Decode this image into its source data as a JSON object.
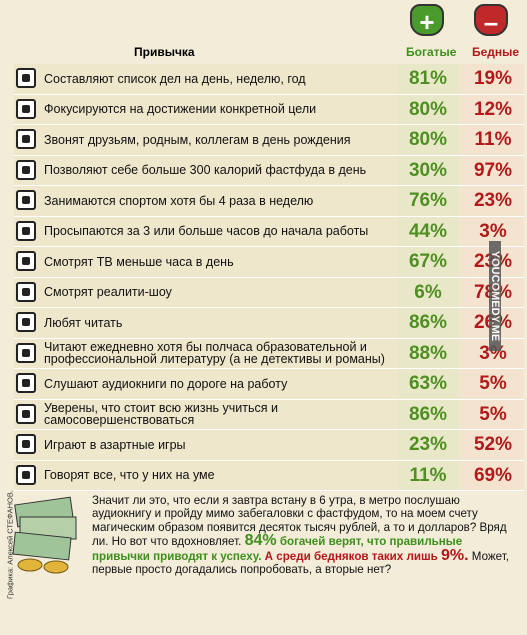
{
  "header": {
    "habit": "Привычка",
    "rich": "Богатые",
    "poor": "Бедные"
  },
  "table": {
    "rows": [
      [
        "Составляют список дел на день, неделю, год",
        "81%",
        "19%"
      ],
      [
        "Фокусируются на достижении конкретной цели",
        "80%",
        "12%"
      ],
      [
        "Звонят друзьям, родным, коллегам в день рождения",
        "80%",
        "11%"
      ],
      [
        "Позволяют себе больше 300 калорий фастфуда в день",
        "30%",
        "97%"
      ],
      [
        "Занимаются спортом хотя бы 4 раза в неделю",
        "76%",
        "23%"
      ],
      [
        "Просыпаются за 3 или больше часов до начала работы",
        "44%",
        "3%"
      ],
      [
        "Смотрят ТВ меньше часа в день",
        "67%",
        "23%"
      ],
      [
        "Смотрят реалити-шоу",
        "6%",
        "78%"
      ],
      [
        "Любят читать",
        "86%",
        "26%"
      ],
      [
        "Читают ежедневно хотя бы полчаса образовательной и профессиональной литературу (а не детективы и романы)",
        "88%",
        "3%"
      ],
      [
        "Слушают аудиокниги по дороге на работу",
        "63%",
        "5%"
      ],
      [
        "Уверены, что стоит всю жизнь учиться и самосовершенствоваться",
        "86%",
        "5%"
      ],
      [
        "Играют в азартные игры",
        "23%",
        "52%"
      ],
      [
        "Говорят все, что у них на уме",
        "11%",
        "69%"
      ]
    ]
  },
  "footer": {
    "segments": [
      "Значит ли это, что если я завтра встану в 6 утра, в метро послушаю аудиокнигу и пройду мимо забегаловки с фастфудом, то на моем счету магическим образом появится десяток тысяч рублей, а то и долларов? Вряд ли. Но вот что вдохновляет. ",
      "84%",
      " богачей верят, что правильные привычки приводят к успеху.",
      " А среди бедняков таких лишь ",
      "9%.",
      " Может, первые просто догадались попробовать, а вторые нет?"
    ]
  },
  "credit": "Графика: Алексей СТЕФАНОВ.",
  "watermark": "YOUCOMEDY.ME"
}
